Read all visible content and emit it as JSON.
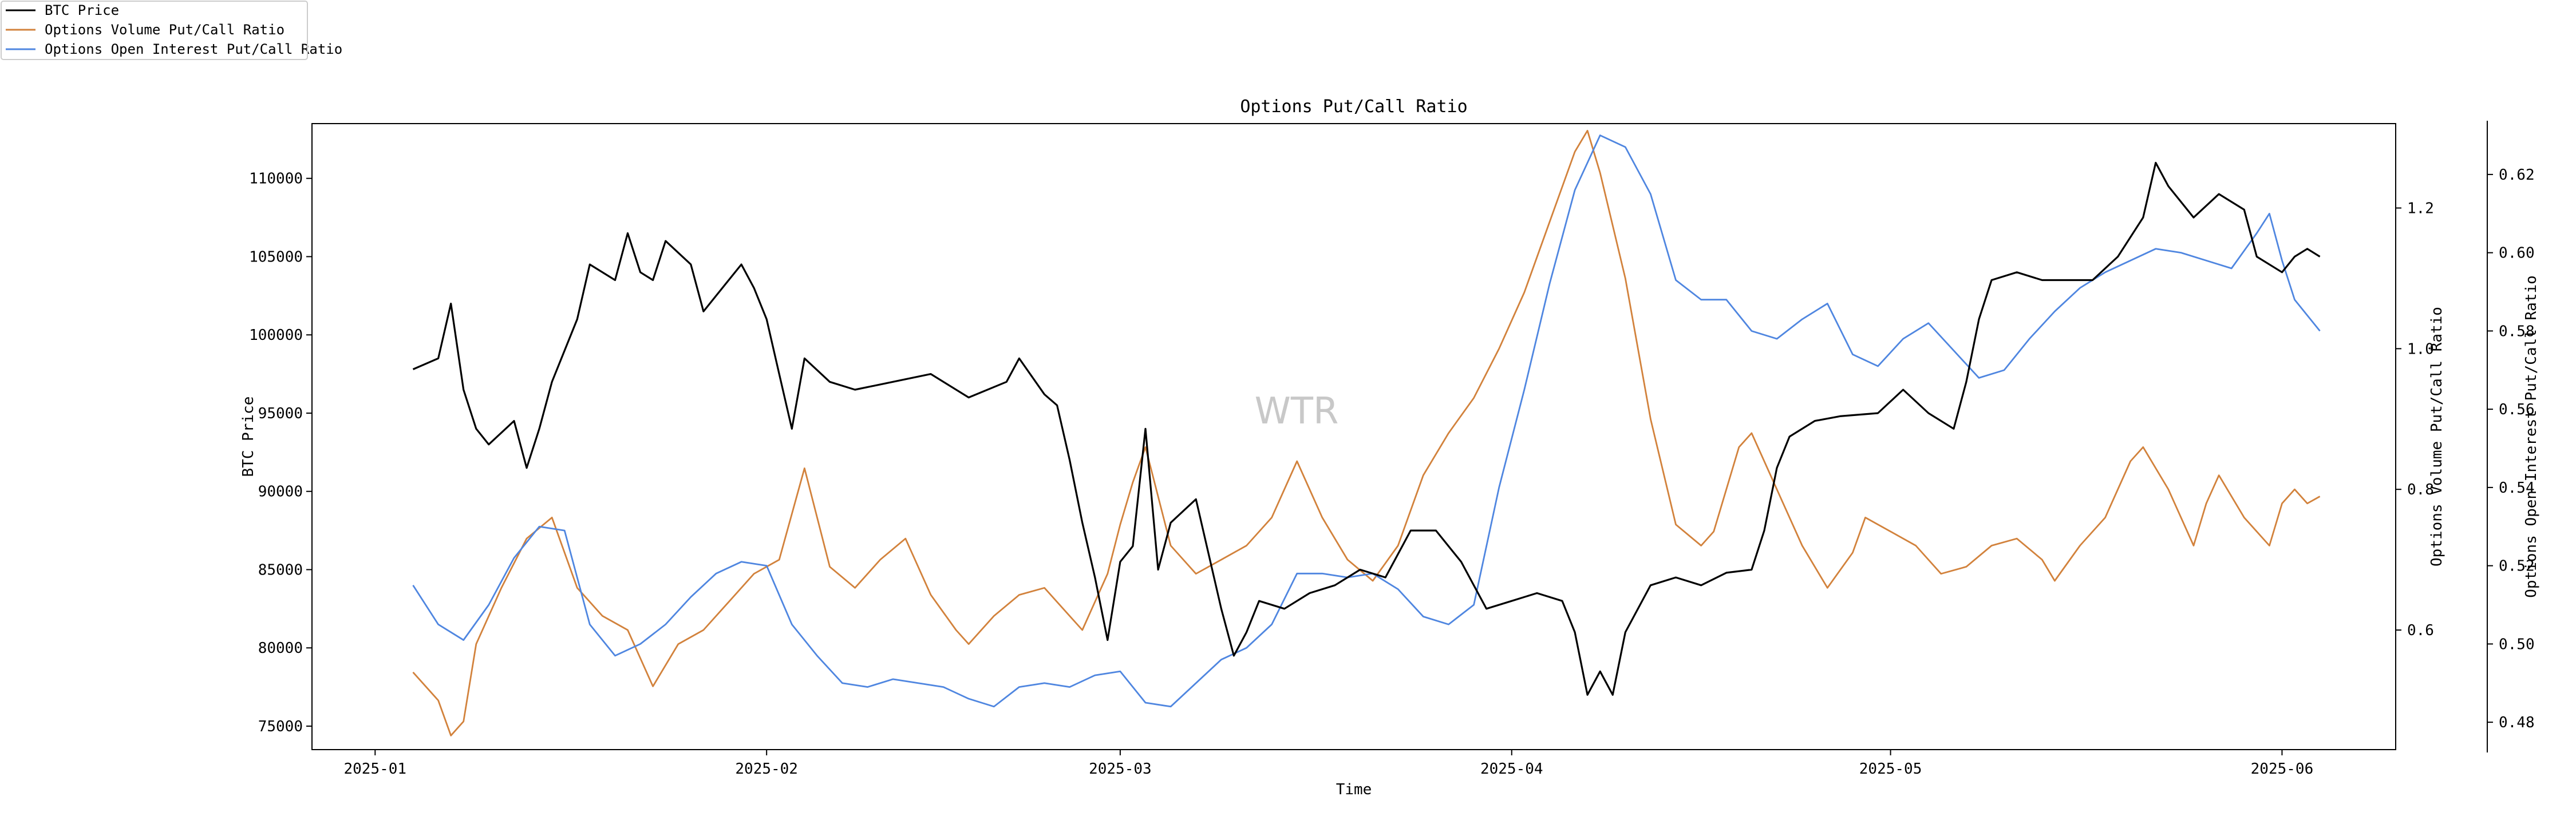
{
  "chart_data": {
    "type": "line",
    "title": "Options Put/Call Ratio",
    "xlabel": "Time",
    "ylabel": "BTC Price",
    "ylabel_right1": "Options Volume Put/Call Ratio",
    "ylabel_right2": "Options Open Interest Put/Call Ratio",
    "watermark": "WTR",
    "legend_position": "top-left (outside)",
    "x_range": [
      "2024-12-27",
      "2025-06-10"
    ],
    "x_ticks": [
      "2025-01",
      "2025-02",
      "2025-03",
      "2025-04",
      "2025-05",
      "2025-06"
    ],
    "y_left": {
      "range": [
        73500,
        113500
      ],
      "ticks": [
        75000,
        80000,
        85000,
        90000,
        95000,
        100000,
        105000,
        110000
      ]
    },
    "y_right1": {
      "range": [
        0.43,
        1.32
      ],
      "ticks": [
        0.6,
        0.8,
        1.0,
        1.2
      ]
    },
    "y_right2": {
      "range": [
        0.473,
        0.633
      ],
      "ticks": [
        0.48,
        0.5,
        0.52,
        0.54,
        0.56,
        0.58,
        0.6,
        0.62
      ]
    },
    "series": [
      {
        "name": "BTC Price",
        "color": "#000000",
        "axis": "left",
        "points": [
          [
            "2025-01-04",
            97800
          ],
          [
            "2025-01-06",
            98500
          ],
          [
            "2025-01-07",
            102000
          ],
          [
            "2025-01-08",
            96500
          ],
          [
            "2025-01-09",
            94000
          ],
          [
            "2025-01-10",
            93000
          ],
          [
            "2025-01-12",
            94500
          ],
          [
            "2025-01-13",
            91500
          ],
          [
            "2025-01-14",
            94000
          ],
          [
            "2025-01-15",
            97000
          ],
          [
            "2025-01-17",
            101000
          ],
          [
            "2025-01-18",
            104500
          ],
          [
            "2025-01-20",
            103500
          ],
          [
            "2025-01-21",
            106500
          ],
          [
            "2025-01-22",
            104000
          ],
          [
            "2025-01-23",
            103500
          ],
          [
            "2025-01-24",
            106000
          ],
          [
            "2025-01-26",
            104500
          ],
          [
            "2025-01-27",
            101500
          ],
          [
            "2025-01-28",
            102500
          ],
          [
            "2025-01-30",
            104500
          ],
          [
            "2025-01-31",
            103000
          ],
          [
            "2025-02-01",
            101000
          ],
          [
            "2025-02-02",
            97500
          ],
          [
            "2025-02-03",
            94000
          ],
          [
            "2025-02-04",
            98500
          ],
          [
            "2025-02-06",
            97000
          ],
          [
            "2025-02-08",
            96500
          ],
          [
            "2025-02-11",
            97000
          ],
          [
            "2025-02-14",
            97500
          ],
          [
            "2025-02-17",
            96000
          ],
          [
            "2025-02-20",
            97000
          ],
          [
            "2025-02-21",
            98500
          ],
          [
            "2025-02-23",
            96200
          ],
          [
            "2025-02-24",
            95500
          ],
          [
            "2025-02-25",
            92000
          ],
          [
            "2025-02-26",
            88000
          ],
          [
            "2025-02-27",
            84500
          ],
          [
            "2025-02-28",
            80500
          ],
          [
            "2025-03-01",
            85500
          ],
          [
            "2025-03-02",
            86500
          ],
          [
            "2025-03-03",
            94000
          ],
          [
            "2025-03-04",
            85000
          ],
          [
            "2025-03-05",
            88000
          ],
          [
            "2025-03-07",
            89500
          ],
          [
            "2025-03-08",
            86000
          ],
          [
            "2025-03-09",
            82500
          ],
          [
            "2025-03-10",
            79500
          ],
          [
            "2025-03-11",
            81000
          ],
          [
            "2025-03-12",
            83000
          ],
          [
            "2025-03-14",
            82500
          ],
          [
            "2025-03-16",
            83500
          ],
          [
            "2025-03-18",
            84000
          ],
          [
            "2025-03-20",
            85000
          ],
          [
            "2025-03-22",
            84500
          ],
          [
            "2025-03-24",
            87500
          ],
          [
            "2025-03-26",
            87500
          ],
          [
            "2025-03-28",
            85500
          ],
          [
            "2025-03-30",
            82500
          ],
          [
            "2025-04-01",
            83000
          ],
          [
            "2025-04-03",
            83500
          ],
          [
            "2025-04-05",
            83000
          ],
          [
            "2025-04-06",
            81000
          ],
          [
            "2025-04-07",
            77000
          ],
          [
            "2025-04-08",
            78500
          ],
          [
            "2025-04-09",
            77000
          ],
          [
            "2025-04-10",
            81000
          ],
          [
            "2025-04-12",
            84000
          ],
          [
            "2025-04-14",
            84500
          ],
          [
            "2025-04-16",
            84000
          ],
          [
            "2025-04-18",
            84800
          ],
          [
            "2025-04-20",
            85000
          ],
          [
            "2025-04-21",
            87500
          ],
          [
            "2025-04-22",
            91500
          ],
          [
            "2025-04-23",
            93500
          ],
          [
            "2025-04-25",
            94500
          ],
          [
            "2025-04-27",
            94800
          ],
          [
            "2025-04-30",
            95000
          ],
          [
            "2025-05-02",
            96500
          ],
          [
            "2025-05-04",
            95000
          ],
          [
            "2025-05-06",
            94000
          ],
          [
            "2025-05-07",
            97000
          ],
          [
            "2025-05-08",
            101000
          ],
          [
            "2025-05-09",
            103500
          ],
          [
            "2025-05-11",
            104000
          ],
          [
            "2025-05-13",
            103500
          ],
          [
            "2025-05-15",
            103500
          ],
          [
            "2025-05-17",
            103500
          ],
          [
            "2025-05-19",
            105000
          ],
          [
            "2025-05-21",
            107500
          ],
          [
            "2025-05-22",
            111000
          ],
          [
            "2025-05-23",
            109500
          ],
          [
            "2025-05-25",
            107500
          ],
          [
            "2025-05-27",
            109000
          ],
          [
            "2025-05-29",
            108000
          ],
          [
            "2025-05-30",
            105000
          ],
          [
            "2025-06-01",
            104000
          ],
          [
            "2025-06-02",
            105000
          ],
          [
            "2025-06-03",
            105500
          ],
          [
            "2025-06-04",
            105000
          ]
        ]
      },
      {
        "name": "Options Volume Put/Call Ratio",
        "color": "#d2823c",
        "axis": "right1",
        "points": [
          [
            "2025-01-04",
            0.54
          ],
          [
            "2025-01-06",
            0.5
          ],
          [
            "2025-01-07",
            0.45
          ],
          [
            "2025-01-08",
            0.47
          ],
          [
            "2025-01-09",
            0.58
          ],
          [
            "2025-01-11",
            0.66
          ],
          [
            "2025-01-13",
            0.73
          ],
          [
            "2025-01-15",
            0.76
          ],
          [
            "2025-01-17",
            0.66
          ],
          [
            "2025-01-19",
            0.62
          ],
          [
            "2025-01-21",
            0.6
          ],
          [
            "2025-01-23",
            0.52
          ],
          [
            "2025-01-25",
            0.58
          ],
          [
            "2025-01-27",
            0.6
          ],
          [
            "2025-01-29",
            0.64
          ],
          [
            "2025-01-31",
            0.68
          ],
          [
            "2025-02-02",
            0.7
          ],
          [
            "2025-02-04",
            0.83
          ],
          [
            "2025-02-06",
            0.69
          ],
          [
            "2025-02-08",
            0.66
          ],
          [
            "2025-02-10",
            0.7
          ],
          [
            "2025-02-12",
            0.73
          ],
          [
            "2025-02-14",
            0.65
          ],
          [
            "2025-02-16",
            0.6
          ],
          [
            "2025-02-17",
            0.58
          ],
          [
            "2025-02-19",
            0.62
          ],
          [
            "2025-02-21",
            0.65
          ],
          [
            "2025-02-23",
            0.66
          ],
          [
            "2025-02-25",
            0.62
          ],
          [
            "2025-02-26",
            0.6
          ],
          [
            "2025-02-28",
            0.68
          ],
          [
            "2025-03-01",
            0.75
          ],
          [
            "2025-03-02",
            0.81
          ],
          [
            "2025-03-03",
            0.86
          ],
          [
            "2025-03-05",
            0.72
          ],
          [
            "2025-03-07",
            0.68
          ],
          [
            "2025-03-09",
            0.7
          ],
          [
            "2025-03-11",
            0.72
          ],
          [
            "2025-03-13",
            0.76
          ],
          [
            "2025-03-15",
            0.84
          ],
          [
            "2025-03-17",
            0.76
          ],
          [
            "2025-03-19",
            0.7
          ],
          [
            "2025-03-21",
            0.67
          ],
          [
            "2025-03-23",
            0.72
          ],
          [
            "2025-03-25",
            0.82
          ],
          [
            "2025-03-27",
            0.88
          ],
          [
            "2025-03-29",
            0.93
          ],
          [
            "2025-03-31",
            1.0
          ],
          [
            "2025-04-02",
            1.08
          ],
          [
            "2025-04-04",
            1.18
          ],
          [
            "2025-04-06",
            1.28
          ],
          [
            "2025-04-07",
            1.31
          ],
          [
            "2025-04-08",
            1.25
          ],
          [
            "2025-04-10",
            1.1
          ],
          [
            "2025-04-12",
            0.9
          ],
          [
            "2025-04-14",
            0.75
          ],
          [
            "2025-04-16",
            0.72
          ],
          [
            "2025-04-17",
            0.74
          ],
          [
            "2025-04-19",
            0.86
          ],
          [
            "2025-04-20",
            0.88
          ],
          [
            "2025-04-22",
            0.8
          ],
          [
            "2025-04-24",
            0.72
          ],
          [
            "2025-04-26",
            0.66
          ],
          [
            "2025-04-28",
            0.71
          ],
          [
            "2025-04-29",
            0.76
          ],
          [
            "2025-05-01",
            0.74
          ],
          [
            "2025-05-03",
            0.72
          ],
          [
            "2025-05-05",
            0.68
          ],
          [
            "2025-05-07",
            0.69
          ],
          [
            "2025-05-09",
            0.72
          ],
          [
            "2025-05-11",
            0.73
          ],
          [
            "2025-05-13",
            0.7
          ],
          [
            "2025-05-14",
            0.67
          ],
          [
            "2025-05-16",
            0.72
          ],
          [
            "2025-05-18",
            0.76
          ],
          [
            "2025-05-20",
            0.84
          ],
          [
            "2025-05-21",
            0.86
          ],
          [
            "2025-05-23",
            0.8
          ],
          [
            "2025-05-25",
            0.72
          ],
          [
            "2025-05-26",
            0.78
          ],
          [
            "2025-05-27",
            0.82
          ],
          [
            "2025-05-29",
            0.76
          ],
          [
            "2025-05-31",
            0.72
          ],
          [
            "2025-06-01",
            0.78
          ],
          [
            "2025-06-02",
            0.8
          ],
          [
            "2025-06-03",
            0.78
          ],
          [
            "2025-06-04",
            0.79
          ]
        ]
      },
      {
        "name": "Options Open Interest Put/Call Ratio",
        "color": "#4f86e0",
        "axis": "right2",
        "points": [
          [
            "2025-01-04",
            0.515
          ],
          [
            "2025-01-06",
            0.505
          ],
          [
            "2025-01-08",
            0.501
          ],
          [
            "2025-01-10",
            0.51
          ],
          [
            "2025-01-12",
            0.522
          ],
          [
            "2025-01-14",
            0.53
          ],
          [
            "2025-01-16",
            0.529
          ],
          [
            "2025-01-18",
            0.505
          ],
          [
            "2025-01-20",
            0.497
          ],
          [
            "2025-01-22",
            0.5
          ],
          [
            "2025-01-24",
            0.505
          ],
          [
            "2025-01-26",
            0.512
          ],
          [
            "2025-01-28",
            0.518
          ],
          [
            "2025-01-30",
            0.521
          ],
          [
            "2025-02-01",
            0.52
          ],
          [
            "2025-02-03",
            0.505
          ],
          [
            "2025-02-05",
            0.497
          ],
          [
            "2025-02-07",
            0.49
          ],
          [
            "2025-02-09",
            0.489
          ],
          [
            "2025-02-11",
            0.491
          ],
          [
            "2025-02-13",
            0.49
          ],
          [
            "2025-02-15",
            0.489
          ],
          [
            "2025-02-17",
            0.486
          ],
          [
            "2025-02-19",
            0.484
          ],
          [
            "2025-02-21",
            0.489
          ],
          [
            "2025-02-23",
            0.49
          ],
          [
            "2025-02-25",
            0.489
          ],
          [
            "2025-02-27",
            0.492
          ],
          [
            "2025-03-01",
            0.493
          ],
          [
            "2025-03-03",
            0.485
          ],
          [
            "2025-03-05",
            0.484
          ],
          [
            "2025-03-07",
            0.49
          ],
          [
            "2025-03-09",
            0.496
          ],
          [
            "2025-03-11",
            0.499
          ],
          [
            "2025-03-13",
            0.505
          ],
          [
            "2025-03-15",
            0.518
          ],
          [
            "2025-03-17",
            0.518
          ],
          [
            "2025-03-19",
            0.517
          ],
          [
            "2025-03-21",
            0.518
          ],
          [
            "2025-03-23",
            0.514
          ],
          [
            "2025-03-25",
            0.507
          ],
          [
            "2025-03-27",
            0.505
          ],
          [
            "2025-03-29",
            0.51
          ],
          [
            "2025-03-31",
            0.54
          ],
          [
            "2025-04-02",
            0.565
          ],
          [
            "2025-04-04",
            0.592
          ],
          [
            "2025-04-06",
            0.616
          ],
          [
            "2025-04-08",
            0.63
          ],
          [
            "2025-04-10",
            0.627
          ],
          [
            "2025-04-12",
            0.615
          ],
          [
            "2025-04-14",
            0.593
          ],
          [
            "2025-04-16",
            0.588
          ],
          [
            "2025-04-18",
            0.588
          ],
          [
            "2025-04-20",
            0.58
          ],
          [
            "2025-04-22",
            0.578
          ],
          [
            "2025-04-24",
            0.583
          ],
          [
            "2025-04-26",
            0.587
          ],
          [
            "2025-04-28",
            0.574
          ],
          [
            "2025-04-30",
            0.571
          ],
          [
            "2025-05-02",
            0.578
          ],
          [
            "2025-05-04",
            0.582
          ],
          [
            "2025-05-06",
            0.575
          ],
          [
            "2025-05-08",
            0.568
          ],
          [
            "2025-05-10",
            0.57
          ],
          [
            "2025-05-12",
            0.578
          ],
          [
            "2025-05-14",
            0.585
          ],
          [
            "2025-05-16",
            0.591
          ],
          [
            "2025-05-18",
            0.595
          ],
          [
            "2025-05-20",
            0.598
          ],
          [
            "2025-05-22",
            0.601
          ],
          [
            "2025-05-24",
            0.6
          ],
          [
            "2025-05-26",
            0.598
          ],
          [
            "2025-05-28",
            0.596
          ],
          [
            "2025-05-30",
            0.605
          ],
          [
            "2025-05-31",
            0.61
          ],
          [
            "2025-06-01",
            0.598
          ],
          [
            "2025-06-02",
            0.588
          ],
          [
            "2025-06-04",
            0.58
          ]
        ]
      }
    ]
  }
}
